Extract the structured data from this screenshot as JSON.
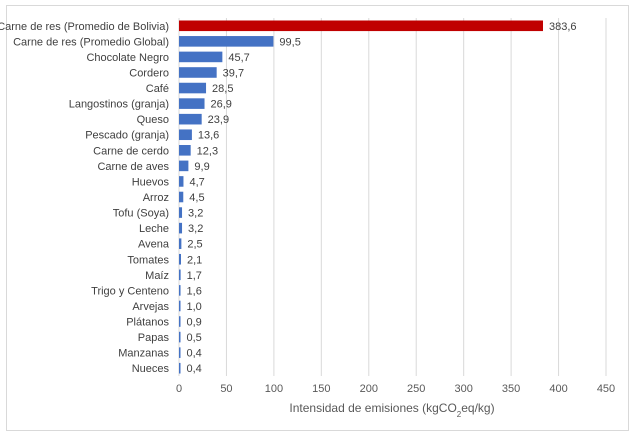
{
  "chart_data": {
    "type": "bar",
    "orientation": "horizontal",
    "title": "",
    "xlabel": "Intensidad de emisiones (kgCO2eq/kg)",
    "xlabel_parts": {
      "pre": "Intensidad de emisiones (kgCO",
      "sub": "2",
      "post": "eq/kg)"
    },
    "ylabel": "",
    "xlim": [
      0,
      450
    ],
    "ticks": [
      0,
      50,
      100,
      150,
      200,
      250,
      300,
      350,
      400,
      450
    ],
    "grid": true,
    "legend": "none",
    "colors": {
      "highlight": "#c00000",
      "default": "#4472c4"
    },
    "categories": [
      "Carne de res (Promedio de Bolivia)",
      "Carne de res (Promedio Global)",
      "Chocolate Negro",
      "Cordero",
      "Café",
      "Langostinos (granja)",
      "Queso",
      "Pescado (granja)",
      "Carne de cerdo",
      "Carne de aves",
      "Huevos",
      "Arroz",
      "Tofu (Soya)",
      "Leche",
      "Avena",
      "Tomates",
      "Maíz",
      "Trigo y Centeno",
      "Arvejas",
      "Plátanos",
      "Papas",
      "Manzanas",
      "Nueces"
    ],
    "values": [
      383.6,
      99.5,
      45.7,
      39.7,
      28.5,
      26.9,
      23.9,
      13.6,
      12.3,
      9.9,
      4.7,
      4.5,
      3.2,
      3.2,
      2.5,
      2.1,
      1.7,
      1.6,
      1.0,
      0.9,
      0.5,
      0.4,
      0.4
    ],
    "value_labels": [
      "383,6",
      "99,5",
      "45,7",
      "39,7",
      "28,5",
      "26,9",
      "23,9",
      "13,6",
      "12,3",
      "9,9",
      "4,7",
      "4,5",
      "3,2",
      "3,2",
      "2,5",
      "2,1",
      "1,7",
      "1,6",
      "1,0",
      "0,9",
      "0,5",
      "0,4",
      "0,4"
    ],
    "highlight_index": 0
  }
}
